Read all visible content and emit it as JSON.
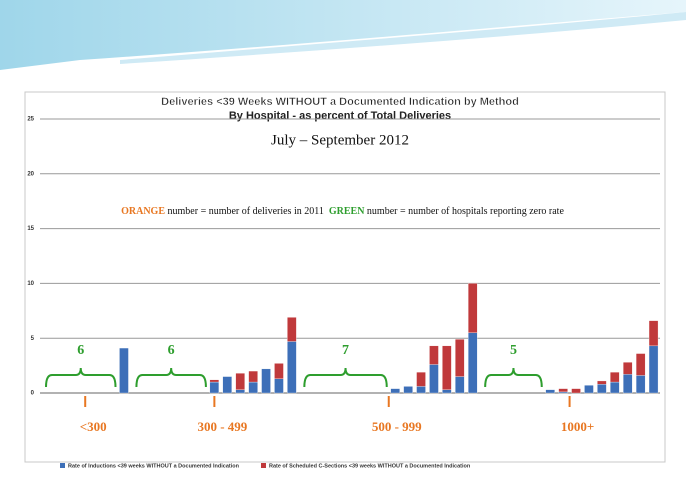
{
  "chart_data": {
    "type": "bar",
    "title": "Deliveries <39 Weeks WITHOUT a Documented Indication by Method",
    "subtitle": "By Hospital - as percent of Total Deliveries",
    "period": "July – September 2012",
    "annotation": [
      "ORANGE",
      " number = number of deliveries in 2011  ",
      "GREEN",
      " number = number of hospitals reporting zero rate"
    ],
    "groups": [
      {
        "label": "<300",
        "zero_hospitals": 6
      },
      {
        "label": "300 - 499",
        "zero_hospitals": 6
      },
      {
        "label": "500 - 999",
        "zero_hospitals": 7
      },
      {
        "label": "1000+",
        "zero_hospitals": 5
      }
    ],
    "categories": [
      null,
      null,
      null,
      null,
      null,
      null,
      null,
      null,
      null,
      null,
      null,
      null,
      null,
      null,
      null,
      null,
      null,
      null,
      null,
      null,
      null,
      null,
      null,
      null,
      null,
      null,
      null,
      null,
      null,
      null,
      null,
      null,
      null,
      null,
      null,
      null,
      null,
      null,
      null,
      null,
      null,
      null,
      null,
      null,
      null,
      null,
      null,
      null
    ],
    "series": [
      {
        "name": "Rate of Inductions <39 weeks WITHOUT a Documented Indication",
        "color": "#3d6fb8",
        "values": [
          0,
          0,
          0,
          0,
          0,
          0,
          4.1,
          0,
          0,
          0,
          0,
          0,
          0,
          1.0,
          1.5,
          0.3,
          1.0,
          2.2,
          1.3,
          4.7,
          0,
          0,
          0,
          0,
          0,
          0,
          0,
          0.4,
          0.6,
          0.6,
          2.6,
          0.3,
          1.5,
          5.5,
          0,
          0,
          0,
          0,
          0,
          0.3,
          0.1,
          0,
          0.7,
          0.8,
          1.0,
          1.7,
          1.6,
          4.3
        ]
      },
      {
        "name": "Rate of Scheduled C-Sections <39 weeks WITHOUT a Documented Indication",
        "color": "#c0393b",
        "values": [
          0,
          0,
          0,
          0,
          0,
          0,
          0,
          0,
          0,
          0,
          0,
          0,
          0,
          0.2,
          0,
          1.5,
          1.0,
          0,
          1.4,
          2.2,
          0,
          0,
          0,
          0,
          0,
          0,
          0,
          0,
          0,
          1.3,
          1.7,
          4.0,
          3.4,
          4.5,
          0,
          0,
          0,
          0,
          0,
          0,
          0.3,
          0.4,
          0,
          0.3,
          0.9,
          1.1,
          2.0,
          2.3
        ]
      }
    ],
    "ylim": [
      0,
      25
    ],
    "yticks": [
      0,
      5,
      10,
      15,
      20,
      25
    ],
    "grid": true,
    "legend": "bottom",
    "group_number_color": "#2e9e2e",
    "group_label_color": "#e87722"
  }
}
